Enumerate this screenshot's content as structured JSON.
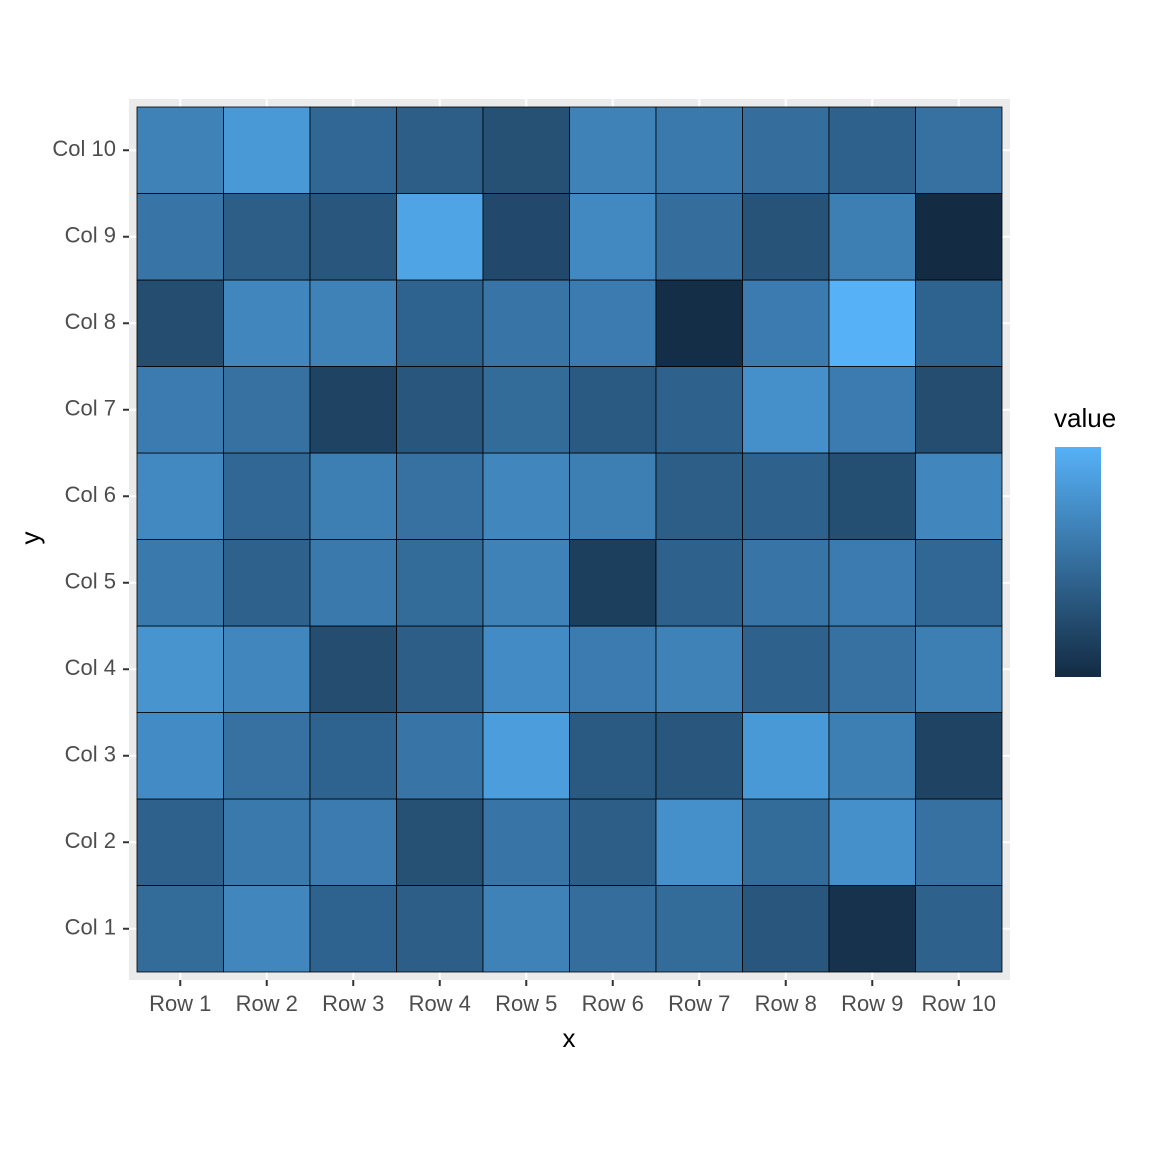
{
  "chart_data": {
    "type": "heatmap",
    "x_label": "x",
    "y_label": "y",
    "x": [
      "Row 1",
      "Row 2",
      "Row 3",
      "Row 4",
      "Row 5",
      "Row 6",
      "Row 7",
      "Row 8",
      "Row 9",
      "Row 10"
    ],
    "y": [
      "Col 1",
      "Col 2",
      "Col 3",
      "Col 4",
      "Col 5",
      "Col 6",
      "Col 7",
      "Col 8",
      "Col 9",
      "Col 10"
    ],
    "values": [
      [
        0.48,
        0.68,
        0.42,
        0.38,
        0.65,
        0.5,
        0.48,
        0.32,
        0.05,
        0.4
      ],
      [
        0.4,
        0.58,
        0.6,
        0.28,
        0.55,
        0.38,
        0.75,
        0.48,
        0.75,
        0.52
      ],
      [
        0.72,
        0.52,
        0.42,
        0.55,
        0.85,
        0.35,
        0.32,
        0.82,
        0.62,
        0.18
      ],
      [
        0.78,
        0.68,
        0.25,
        0.38,
        0.72,
        0.6,
        0.65,
        0.4,
        0.52,
        0.62
      ],
      [
        0.58,
        0.4,
        0.58,
        0.48,
        0.65,
        0.15,
        0.4,
        0.55,
        0.6,
        0.45
      ],
      [
        0.7,
        0.45,
        0.62,
        0.52,
        0.68,
        0.62,
        0.38,
        0.4,
        0.26,
        0.68
      ],
      [
        0.6,
        0.52,
        0.18,
        0.32,
        0.48,
        0.35,
        0.4,
        0.75,
        0.6,
        0.25
      ],
      [
        0.25,
        0.68,
        0.65,
        0.42,
        0.55,
        0.6,
        0.02,
        0.6,
        1.0,
        0.42
      ],
      [
        0.55,
        0.38,
        0.32,
        0.9,
        0.22,
        0.7,
        0.5,
        0.3,
        0.62,
        0.0
      ],
      [
        0.65,
        0.82,
        0.45,
        0.38,
        0.28,
        0.65,
        0.58,
        0.5,
        0.4,
        0.52
      ]
    ],
    "legend_title": "value",
    "color_low": "#132B43",
    "color_high": "#56B1F7",
    "grid": true
  }
}
